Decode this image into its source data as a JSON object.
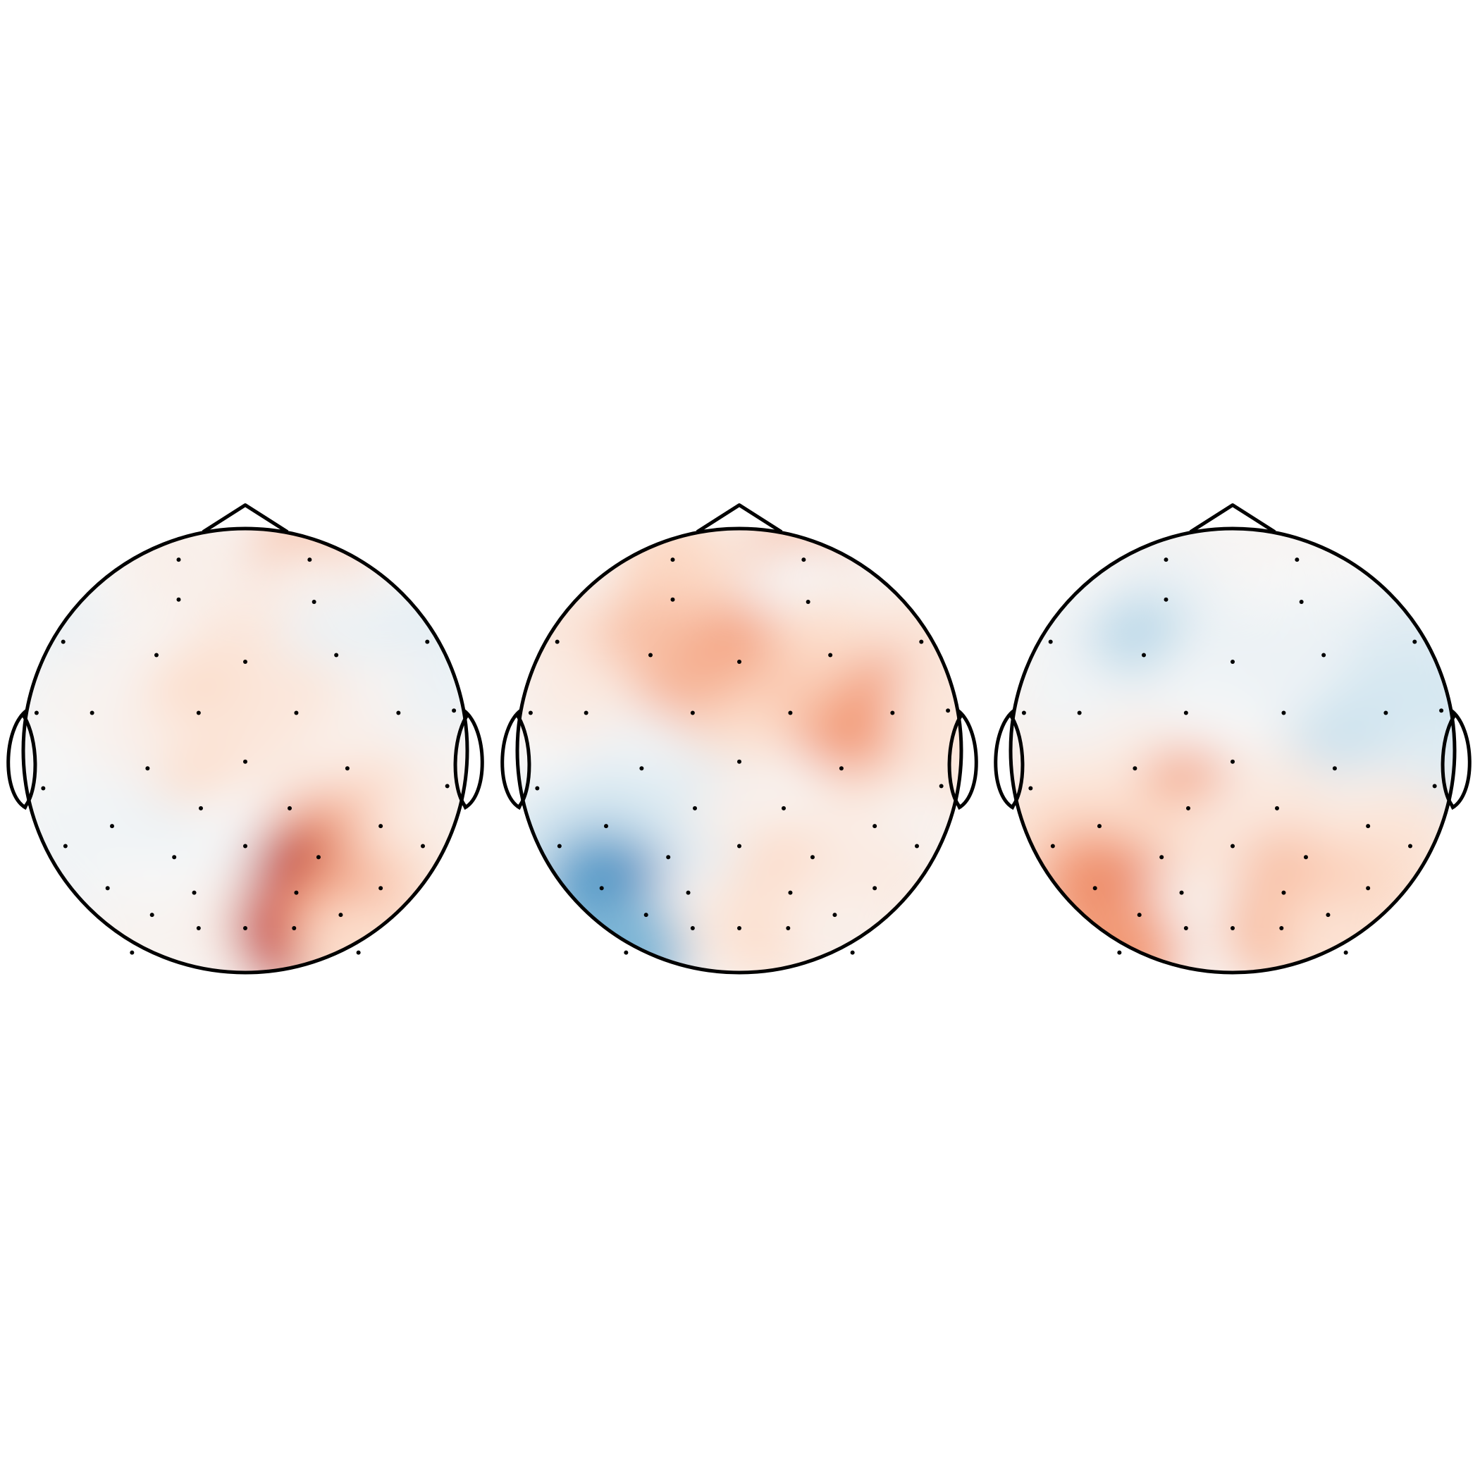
{
  "chart_data": [
    {
      "type": "topomap",
      "xlim": [
        -1,
        1
      ],
      "ylim": [
        -1,
        1
      ],
      "vlim": [
        -1,
        1
      ],
      "colormap": [
        "#2166ac",
        "#67a9cf",
        "#d1e5f0",
        "#f7f7f7",
        "#fddbc7",
        "#ef8a62",
        "#b2182b"
      ],
      "x": [
        -0.3,
        0.29,
        -0.3,
        0.31,
        -0.82,
        -0.4,
        0,
        0.41,
        0.82,
        -0.94,
        -0.69,
        -0.21,
        0.23,
        0.69,
        0.94,
        -0.44,
        0,
        0.46,
        -0.91,
        0.91,
        -0.2,
        0.2,
        -0.6,
        0.61,
        -0.81,
        -0.32,
        0,
        0.33,
        0.8,
        -0.62,
        -0.23,
        0.23,
        0.61,
        -0.42,
        -0.21,
        0,
        0.22,
        0.43,
        -0.51,
        0.51
      ],
      "y": [
        -0.86,
        -0.86,
        -0.68,
        -0.67,
        -0.49,
        -0.43,
        -0.4,
        -0.43,
        -0.49,
        -0.17,
        -0.17,
        -0.17,
        -0.17,
        -0.17,
        -0.18,
        0.08,
        0.05,
        0.08,
        0.17,
        0.16,
        0.26,
        0.26,
        0.34,
        0.34,
        0.43,
        0.48,
        0.43,
        0.48,
        0.43,
        0.62,
        0.64,
        0.64,
        0.62,
        0.74,
        0.8,
        0.8,
        0.8,
        0.74,
        0.91,
        0.91
      ],
      "values": [
        0.1,
        0.45,
        0.1,
        0.1,
        -0.1,
        0.05,
        0.2,
        -0.1,
        -0.15,
        -0.05,
        0.05,
        0.3,
        0.2,
        0.05,
        -0.1,
        0.1,
        0.2,
        0.1,
        0.0,
        0.05,
        0.3,
        0.15,
        -0.05,
        0.35,
        -0.05,
        -0.1,
        0.0,
        0.6,
        0.1,
        -0.05,
        -0.05,
        1.0,
        0.3,
        0.0,
        0.0,
        0.1,
        0.9,
        0.6,
        0.05,
        0.3
      ]
    },
    {
      "type": "topomap",
      "xlim": [
        -1,
        1
      ],
      "ylim": [
        -1,
        1
      ],
      "vlim": [
        -1,
        1
      ],
      "colormap": [
        "#2166ac",
        "#67a9cf",
        "#d1e5f0",
        "#f7f7f7",
        "#fddbc7",
        "#ef8a62",
        "#b2182b"
      ],
      "x": [
        -0.3,
        0.29,
        -0.3,
        0.31,
        -0.82,
        -0.4,
        0,
        0.41,
        0.82,
        -0.94,
        -0.69,
        -0.21,
        0.23,
        0.69,
        0.94,
        -0.44,
        0,
        0.46,
        -0.91,
        0.91,
        -0.2,
        0.2,
        -0.6,
        0.61,
        -0.81,
        -0.32,
        0,
        0.33,
        0.8,
        -0.62,
        -0.23,
        0.23,
        0.61,
        -0.42,
        -0.21,
        0,
        0.22,
        0.43,
        -0.51,
        0.51
      ],
      "y": [
        -0.86,
        -0.86,
        -0.68,
        -0.67,
        -0.49,
        -0.43,
        -0.4,
        -0.43,
        -0.49,
        -0.17,
        -0.17,
        -0.17,
        -0.17,
        -0.17,
        -0.18,
        0.08,
        0.05,
        0.08,
        0.17,
        0.16,
        0.26,
        0.26,
        0.34,
        0.34,
        0.43,
        0.48,
        0.43,
        0.48,
        0.43,
        0.62,
        0.64,
        0.64,
        0.62,
        0.74,
        0.8,
        0.8,
        0.8,
        0.74,
        0.91,
        0.91
      ],
      "values": [
        0.3,
        0.45,
        0.35,
        0.0,
        0.2,
        0.45,
        0.55,
        0.3,
        0.2,
        0.05,
        0.15,
        0.5,
        0.4,
        0.6,
        0.2,
        -0.05,
        0.3,
        0.6,
        0.0,
        0.2,
        -0.15,
        0.05,
        -0.3,
        0.2,
        -0.3,
        -0.3,
        0.1,
        0.1,
        0.05,
        -0.7,
        -0.2,
        0.35,
        0.15,
        -0.85,
        0.0,
        0.15,
        0.3,
        0.15,
        -0.6,
        0.1
      ]
    },
    {
      "type": "topomap",
      "xlim": [
        -1,
        1
      ],
      "ylim": [
        -1,
        1
      ],
      "vlim": [
        -1,
        1
      ],
      "colormap": [
        "#2166ac",
        "#67a9cf",
        "#d1e5f0",
        "#f7f7f7",
        "#fddbc7",
        "#ef8a62",
        "#b2182b"
      ],
      "x": [
        -0.3,
        0.29,
        -0.3,
        0.31,
        -0.82,
        -0.4,
        0,
        0.41,
        0.82,
        -0.94,
        -0.69,
        -0.21,
        0.23,
        0.69,
        0.94,
        -0.44,
        0,
        0.46,
        -0.91,
        0.91,
        -0.2,
        0.2,
        -0.6,
        0.61,
        -0.81,
        -0.32,
        0,
        0.33,
        0.8,
        -0.62,
        -0.23,
        0.23,
        0.61,
        -0.42,
        -0.21,
        0,
        0.22,
        0.43,
        -0.51,
        0.51
      ],
      "y": [
        -0.86,
        -0.86,
        -0.68,
        -0.67,
        -0.49,
        -0.43,
        -0.4,
        -0.43,
        -0.49,
        -0.17,
        -0.17,
        -0.17,
        -0.17,
        -0.17,
        -0.18,
        0.08,
        0.05,
        0.08,
        0.17,
        0.16,
        0.26,
        0.26,
        0.34,
        0.34,
        0.43,
        0.48,
        0.43,
        0.48,
        0.43,
        0.62,
        0.64,
        0.64,
        0.62,
        0.74,
        0.8,
        0.8,
        0.8,
        0.74,
        0.91,
        0.91
      ],
      "values": [
        0.05,
        0.05,
        -0.1,
        0.0,
        -0.05,
        -0.4,
        -0.1,
        -0.1,
        -0.2,
        0.05,
        -0.05,
        -0.05,
        -0.1,
        -0.3,
        -0.3,
        0.1,
        0.0,
        -0.35,
        0.1,
        -0.2,
        0.55,
        0.15,
        0.25,
        0.1,
        0.3,
        0.3,
        0.15,
        0.2,
        0.2,
        0.6,
        0.3,
        0.45,
        0.3,
        0.7,
        0.1,
        0.05,
        0.45,
        0.4,
        0.6,
        0.25
      ]
    }
  ]
}
